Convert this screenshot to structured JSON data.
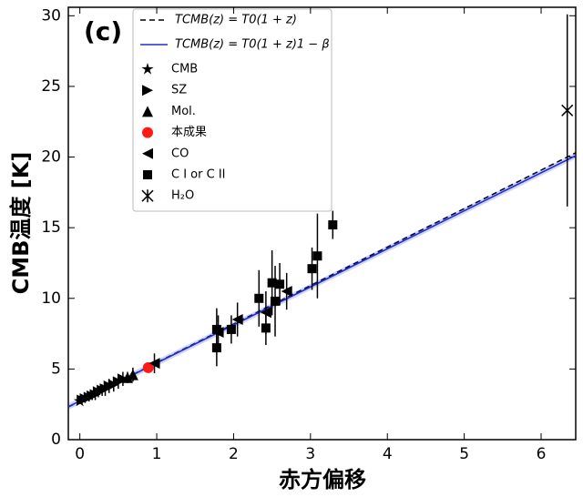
{
  "chart_data": {
    "type": "scatter",
    "panel_label": "(c)",
    "x_label": "赤方偏移",
    "y_label": "CMB温度  [K]",
    "xlim": [
      -0.15,
      6.45
    ],
    "ylim": [
      0,
      30.6
    ],
    "xticks": [
      0,
      1,
      2,
      3,
      4,
      5,
      6
    ],
    "yticks": [
      0,
      5,
      10,
      15,
      20,
      25,
      30
    ],
    "lines": [
      {
        "name": "TCMB(z) = T0(1 + z)",
        "color": "#000000",
        "dash": true,
        "x": [
          -0.15,
          6.45
        ],
        "values": [
          2.316,
          20.301
        ]
      },
      {
        "name": "TCMB(z) = T0(1 + z)1 − β",
        "color": "#1f2fd0",
        "dash": false,
        "x": [
          -0.15,
          6.45
        ],
        "values": [
          2.33,
          20.1
        ]
      }
    ],
    "series": [
      {
        "name": "CMB",
        "marker": "star",
        "color": "#000000",
        "x": [
          0
        ],
        "values": [
          2.725
        ],
        "errors": [
          0
        ]
      },
      {
        "name": "SZ",
        "marker": "right",
        "color": "#000000",
        "x": [
          0.03,
          0.07,
          0.12,
          0.16,
          0.2,
          0.24,
          0.29,
          0.33,
          0.38,
          0.44,
          0.5,
          0.56
        ],
        "values": [
          2.8,
          2.9,
          3.0,
          3.1,
          3.2,
          3.4,
          3.5,
          3.6,
          3.8,
          3.9,
          4.1,
          4.3
        ],
        "errors": [
          0.2,
          0.3,
          0.3,
          0.3,
          0.4,
          0.4,
          0.4,
          0.5,
          0.5,
          0.5,
          0.5,
          0.5
        ]
      },
      {
        "name": "Mol.",
        "marker": "up",
        "color": "#000000",
        "x": [
          0.62,
          0.69
        ],
        "values": [
          4.4,
          4.6
        ],
        "errors": [
          0.4,
          0.5
        ]
      },
      {
        "name": "本成果",
        "marker": "circle",
        "color": "#ff1a1a",
        "x": [
          0.89
        ],
        "values": [
          5.1
        ],
        "errors": [
          0.2
        ]
      },
      {
        "name": "CO",
        "marker": "left",
        "color": "#000000",
        "x": [
          0.97,
          1.8,
          2.05,
          2.42,
          2.69
        ],
        "values": [
          5.4,
          7.6,
          8.5,
          9.0,
          10.5
        ],
        "errors": [
          0.7,
          1.2,
          1.2,
          1.5,
          1.3
        ]
      },
      {
        "name": "C I  or  C II",
        "marker": "square",
        "color": "#000000",
        "x": [
          1.78,
          1.78,
          1.97,
          2.33,
          2.42,
          2.5,
          2.54,
          2.6,
          3.02,
          3.09,
          3.29
        ],
        "values": [
          6.5,
          7.8,
          7.8,
          10.0,
          7.9,
          11.1,
          9.8,
          11.0,
          12.1,
          13.0,
          15.2
        ],
        "errors": [
          1.3,
          1.5,
          1.0,
          2.0,
          1.2,
          2.3,
          2.5,
          1.5,
          1.5,
          3.0,
          1.0
        ]
      },
      {
        "name": "H₂O",
        "marker": "x",
        "color": "#000000",
        "x": [
          6.34
        ],
        "values": [
          23.3
        ],
        "errors": [
          6.8
        ]
      }
    ]
  }
}
